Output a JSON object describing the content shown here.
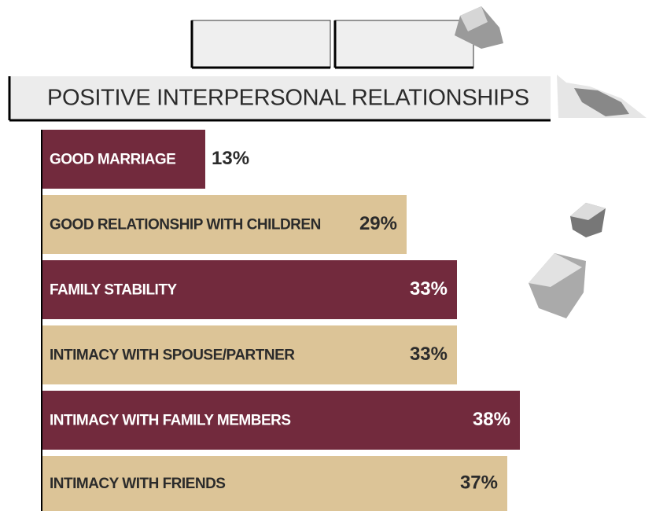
{
  "chart_data": {
    "type": "bar",
    "orientation": "horizontal",
    "title": "POSITIVE INTERPERSONAL RELATIONSHIPS",
    "categories": [
      "GOOD MARRIAGE",
      "GOOD RELATIONSHIP WITH CHILDREN",
      "FAMILY STABILITY",
      "INTIMACY WITH SPOUSE/PARTNER",
      "INTIMACY WITH FAMILY MEMBERS",
      "INTIMACY WITH FRIENDS"
    ],
    "values": [
      13,
      29,
      33,
      33,
      38,
      37
    ],
    "value_labels": [
      "13%",
      "29%",
      "33%",
      "33%",
      "38%",
      "37%"
    ],
    "colors": [
      "#722a3d",
      "#dcc497",
      "#722a3d",
      "#dcc497",
      "#722a3d",
      "#dcc497"
    ]
  }
}
